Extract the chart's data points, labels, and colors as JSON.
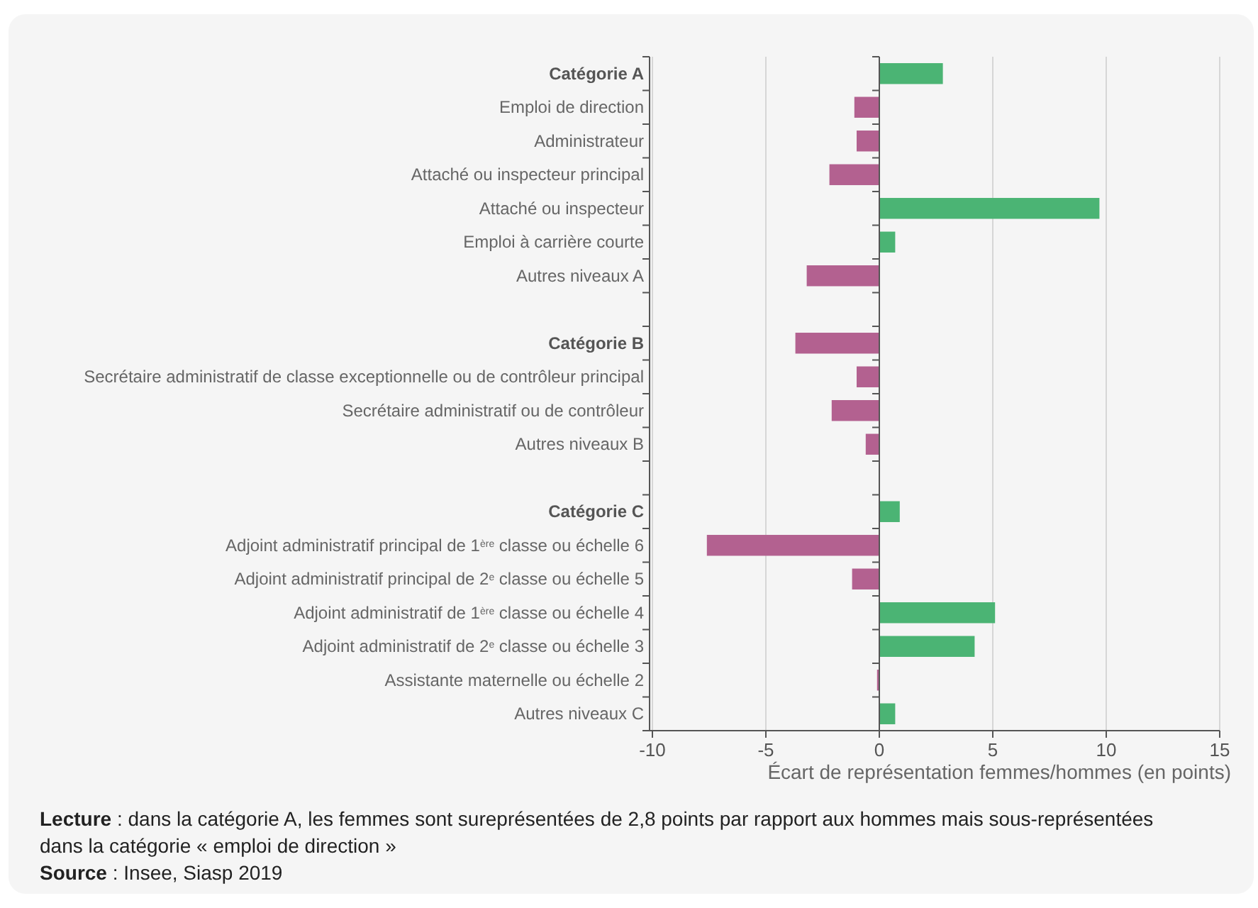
{
  "chart_data": {
    "type": "bar",
    "orientation": "horizontal",
    "categories": [
      "Catégorie A",
      "Emploi de direction",
      "Administrateur",
      "Attaché ou inspecteur principal",
      "Attaché ou inspecteur",
      "Emploi à carrière courte",
      "Autres niveaux A",
      null,
      "Catégorie B",
      "Secrétaire administratif de classe exceptionnelle ou de contrôleur principal",
      "Secrétaire administratif ou de contrôleur",
      "Autres niveaux B",
      null,
      "Catégorie C",
      "Adjoint administratif principal de 1$^{ère}$ classe ou échelle 6",
      "Adjoint administratif principal de 2$^{e}$ classe ou échelle 5",
      "Adjoint administratif de 1$^{ère}$ classe ou échelle 4",
      "Adjoint administratif de 2$^{e}$ classe ou échelle 3",
      "Assistante maternelle ou échelle 2",
      "Autres niveaux C"
    ],
    "values": [
      2.8,
      -1.1,
      -1.0,
      -2.2,
      9.7,
      0.7,
      -3.2,
      null,
      -3.7,
      -1.0,
      -2.1,
      -0.6,
      null,
      0.9,
      -7.6,
      -1.2,
      5.1,
      4.2,
      -0.1,
      0.7
    ],
    "colors": [
      "#4bb474",
      "#b36190",
      "#b36190",
      "#b36190",
      "#4bb474",
      "#4bb474",
      "#b36190",
      null,
      "#b36190",
      "#b36190",
      "#b36190",
      "#b36190",
      null,
      "#4bb474",
      "#b36190",
      "#b36190",
      "#4bb474",
      "#4bb474",
      "#b36190",
      "#4bb474"
    ],
    "xlim": [
      -10,
      15
    ],
    "xticks": [
      -10,
      -5,
      0,
      5,
      10,
      15
    ],
    "xlabel": "Écart de représentation femmes/hommes (en points)",
    "grid": "x",
    "annotations": [
      "Lecture : dans la catégorie A, les femmes sont sureprésentées de 2,8 points par rapport aux hommes mais sous-représentées dans la catégorie « emploi de direction »",
      "Source : Insee, Siasp 2019"
    ]
  }
}
